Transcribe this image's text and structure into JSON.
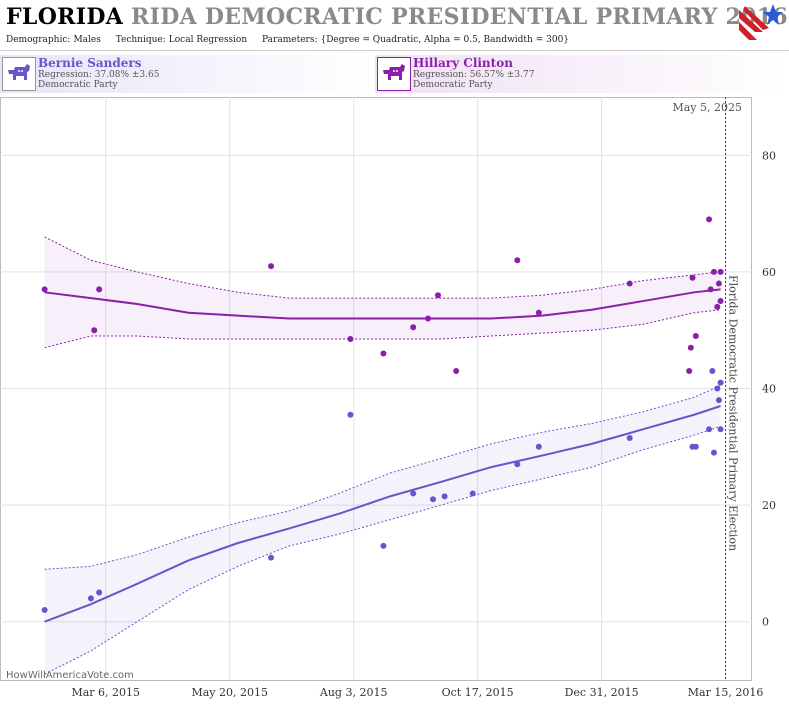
{
  "header": {
    "title_state": "FLORIDA",
    "title_rest": "RIDA DEMOCRATIC PRESIDENTIAL PRIMARY 2016",
    "demographic_label": "Demographic:",
    "demographic_value": "Males",
    "technique_label": "Technique:",
    "technique_value": "Local Regression",
    "parameters_label": "Parameters:",
    "parameters_value": "{Degree = Quadratic, Alpha = 0.5, Bandwidth = 300}"
  },
  "candidates": {
    "sanders": {
      "name": "Bernie Sanders",
      "regression": "Regression: 37.08% ±3.65",
      "party": "Democratic Party",
      "color": "#6655cc"
    },
    "clinton": {
      "name": "Hillary Clinton",
      "regression": "Regression: 56.57% ±3.77",
      "party": "Democratic Party",
      "color": "#8a1fa8"
    }
  },
  "watermark": "HowWillAmericaVote.com",
  "chart_data": {
    "type": "scatter",
    "date_label": "May 5, 2025",
    "election_label": "Florida Democratic Presidential Primary Election",
    "election_date": "2016-03-15",
    "x_range": [
      "2015-01-01",
      "2016-03-31"
    ],
    "y_range": [
      -10,
      90
    ],
    "x_ticks": [
      {
        "date": "2015-03-06",
        "label": "Mar 6, 2015"
      },
      {
        "date": "2015-05-20",
        "label": "May 20, 2015"
      },
      {
        "date": "2015-08-03",
        "label": "Aug 3, 2015"
      },
      {
        "date": "2015-10-17",
        "label": "Oct 17, 2015"
      },
      {
        "date": "2015-12-31",
        "label": "Dec 31, 2015"
      },
      {
        "date": "2016-03-15",
        "label": "Mar 15, 2016"
      }
    ],
    "y_ticks": [
      0,
      20,
      40,
      60,
      80
    ],
    "grid": true,
    "series": [
      {
        "name": "Bernie Sanders",
        "color": "#6655cc",
        "points": [
          [
            "2015-01-28",
            2
          ],
          [
            "2015-02-25",
            4
          ],
          [
            "2015-03-02",
            5
          ],
          [
            "2015-06-14",
            11
          ],
          [
            "2015-08-01",
            35.5
          ],
          [
            "2015-08-21",
            13
          ],
          [
            "2015-09-08",
            22
          ],
          [
            "2015-09-20",
            21
          ],
          [
            "2015-09-27",
            21.5
          ],
          [
            "2015-10-14",
            22
          ],
          [
            "2015-11-10",
            27
          ],
          [
            "2015-11-23",
            30
          ],
          [
            "2016-01-17",
            31.5
          ],
          [
            "2016-02-24",
            30
          ],
          [
            "2016-02-26",
            30
          ],
          [
            "2016-03-05",
            33
          ],
          [
            "2016-03-07",
            43
          ],
          [
            "2016-03-08",
            29
          ],
          [
            "2016-03-10",
            40
          ],
          [
            "2016-03-11",
            38
          ],
          [
            "2016-03-12",
            41
          ],
          [
            "2016-03-12",
            33
          ]
        ],
        "fit": [
          [
            "2015-01-28",
            0,
            9,
            -9
          ],
          [
            "2015-02-25",
            3,
            9.5,
            -5
          ],
          [
            "2015-03-25",
            6.5,
            11.5,
            0
          ],
          [
            "2015-04-25",
            10.5,
            14.5,
            5.5
          ],
          [
            "2015-05-25",
            13.5,
            17,
            9.5
          ],
          [
            "2015-06-25",
            16,
            19,
            13
          ],
          [
            "2015-07-25",
            18.5,
            22,
            15
          ],
          [
            "2015-08-25",
            21.5,
            25.5,
            17.5
          ],
          [
            "2015-09-25",
            24,
            28,
            20
          ],
          [
            "2015-10-25",
            26.5,
            30.5,
            22.5
          ],
          [
            "2015-11-25",
            28.5,
            32.5,
            24.5
          ],
          [
            "2015-12-25",
            30.5,
            34,
            26.5
          ],
          [
            "2016-01-25",
            33,
            36,
            29.5
          ],
          [
            "2016-02-25",
            35.5,
            38.5,
            32
          ],
          [
            "2016-03-12",
            37,
            40.5,
            33.5
          ]
        ]
      },
      {
        "name": "Hillary Clinton",
        "color": "#8a1fa8",
        "points": [
          [
            "2015-01-28",
            57
          ],
          [
            "2015-02-27",
            50
          ],
          [
            "2015-03-02",
            57
          ],
          [
            "2015-06-14",
            61
          ],
          [
            "2015-08-01",
            48.5
          ],
          [
            "2015-08-21",
            46
          ],
          [
            "2015-09-08",
            50.5
          ],
          [
            "2015-09-17",
            52
          ],
          [
            "2015-09-23",
            56
          ],
          [
            "2015-10-04",
            43
          ],
          [
            "2015-11-10",
            62
          ],
          [
            "2015-11-23",
            53
          ],
          [
            "2016-01-17",
            58
          ],
          [
            "2016-02-24",
            59
          ],
          [
            "2016-02-23",
            47
          ],
          [
            "2016-02-26",
            49
          ],
          [
            "2016-02-22",
            43
          ],
          [
            "2016-03-05",
            69
          ],
          [
            "2016-03-06",
            57
          ],
          [
            "2016-03-08",
            60
          ],
          [
            "2016-03-10",
            54
          ],
          [
            "2016-03-11",
            58
          ],
          [
            "2016-03-12",
            60
          ],
          [
            "2016-03-12",
            55
          ]
        ],
        "fit": [
          [
            "2015-01-28",
            56.5,
            66,
            47
          ],
          [
            "2015-02-25",
            55.5,
            62,
            49
          ],
          [
            "2015-03-25",
            54.5,
            60,
            49
          ],
          [
            "2015-04-25",
            53,
            58,
            48.5
          ],
          [
            "2015-05-25",
            52.5,
            56.5,
            48.5
          ],
          [
            "2015-06-25",
            52,
            55.5,
            48.5
          ],
          [
            "2015-07-25",
            52,
            55.5,
            48.5
          ],
          [
            "2015-08-25",
            52,
            55.5,
            48.5
          ],
          [
            "2015-09-25",
            52,
            55.5,
            48.5
          ],
          [
            "2015-10-25",
            52,
            55.5,
            49
          ],
          [
            "2015-11-25",
            52.5,
            56,
            49.5
          ],
          [
            "2015-12-25",
            53.5,
            57,
            50
          ],
          [
            "2016-01-25",
            55,
            58.5,
            51
          ],
          [
            "2016-02-25",
            56.5,
            59.5,
            53
          ],
          [
            "2016-03-12",
            57,
            60,
            53.5
          ]
        ]
      }
    ]
  }
}
